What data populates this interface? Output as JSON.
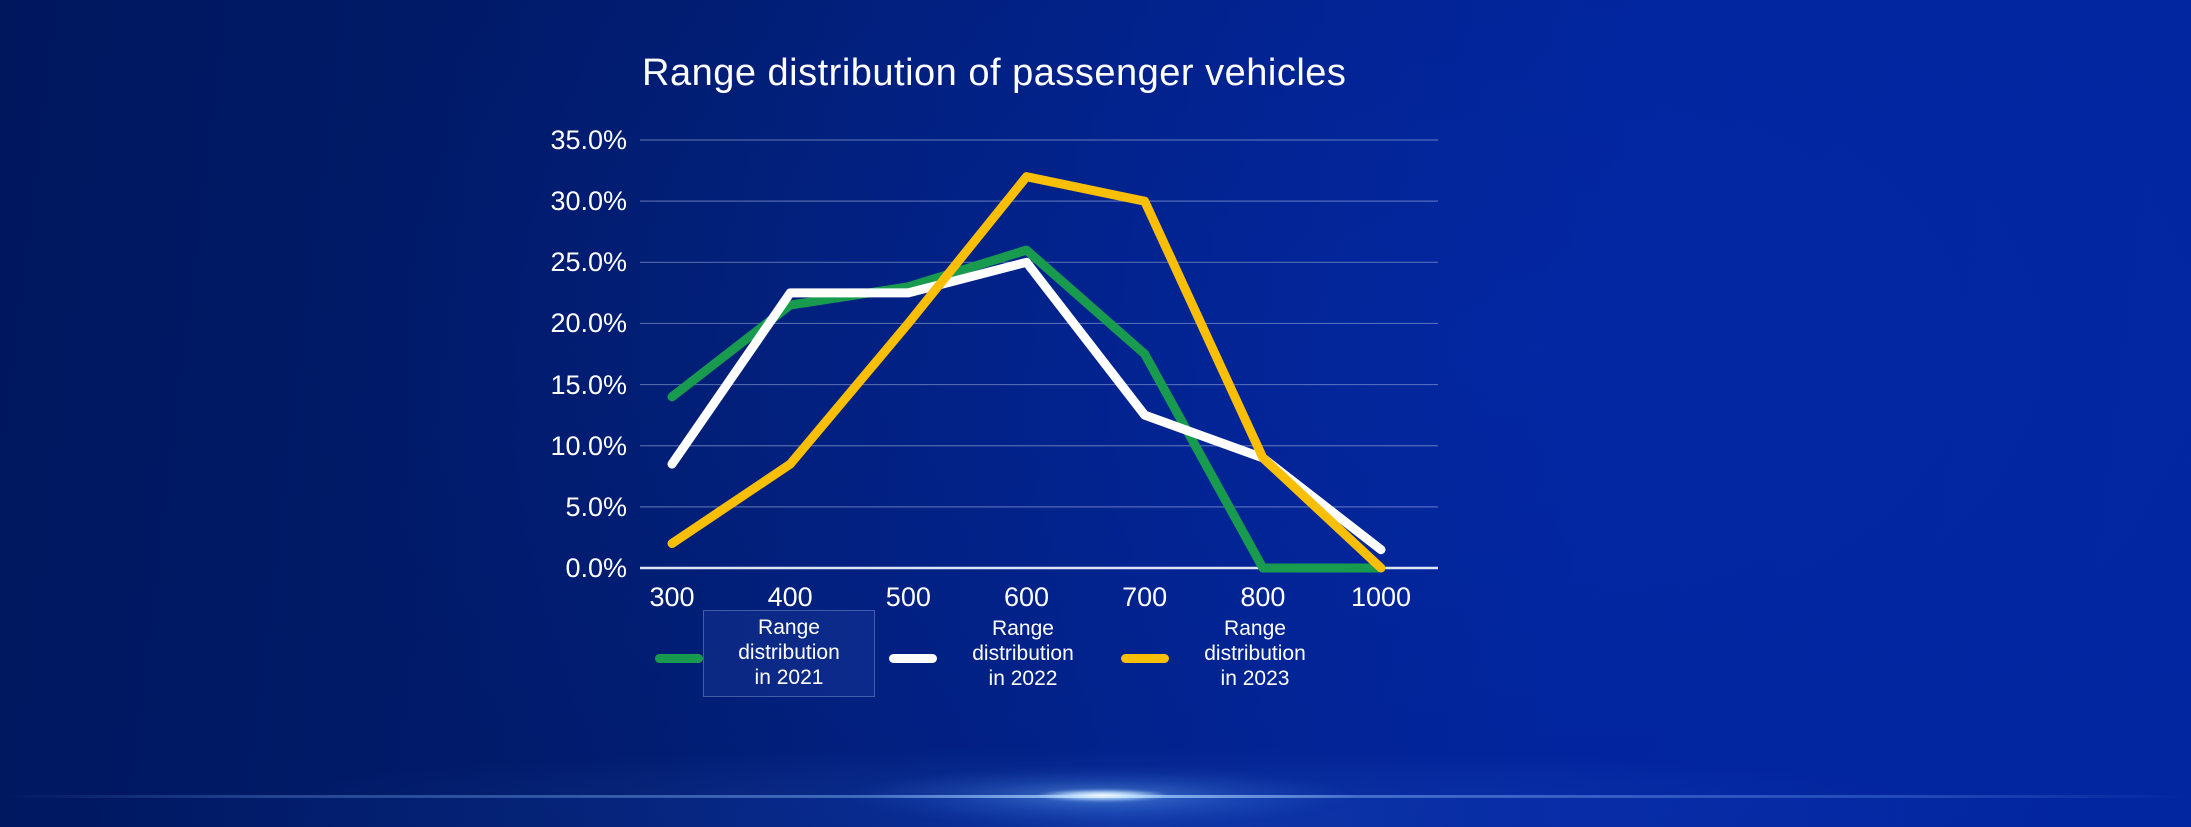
{
  "colors": {
    "background_left": "#00175E",
    "background_right": "#02259E",
    "grid_line": "#9FB2DC",
    "axis_line": "#E9EFFB",
    "title_text": "#FFFFFF",
    "floor_glow": "#7FB4FF"
  },
  "chart_data": {
    "type": "line",
    "title": "Range distribution of passenger vehicles",
    "xlabel": "",
    "ylabel": "",
    "categories": [
      300,
      400,
      500,
      600,
      700,
      800,
      1000
    ],
    "x_tick_labels": [
      "300",
      "400",
      "500",
      "600",
      "700",
      "800",
      "1000"
    ],
    "y_tick_labels": [
      "35.0%",
      "30.0%",
      "25.0%",
      "20.0%",
      "15.0%",
      "10.0%",
      "5.0%",
      "0.0%"
    ],
    "ylim": [
      0,
      35
    ],
    "y_step": 5,
    "y_unit": "percent",
    "grid": true,
    "series": [
      {
        "name": "Range distribution in 2021",
        "color": "#189B4F",
        "values": [
          14,
          21.5,
          23,
          26,
          17.5,
          0,
          0
        ]
      },
      {
        "name": "Range distribution in 2022",
        "color": "#FFFFFF",
        "values": [
          8.5,
          22.5,
          22.5,
          25,
          12.5,
          9,
          1.5
        ]
      },
      {
        "name": "Range distribution in 2023",
        "color": "#F9BE06",
        "values": [
          2,
          8.5,
          20,
          32,
          30,
          9,
          0
        ]
      }
    ],
    "legend": {
      "position": "bottom",
      "items": [
        {
          "lines": [
            "Range",
            "distribution",
            "in 2021"
          ],
          "boxed": true
        },
        {
          "lines": [
            "Range",
            "distribution",
            "in 2022"
          ],
          "boxed": false
        },
        {
          "lines": [
            "Range",
            "distribution",
            "in 2023"
          ],
          "boxed": false
        }
      ]
    }
  }
}
